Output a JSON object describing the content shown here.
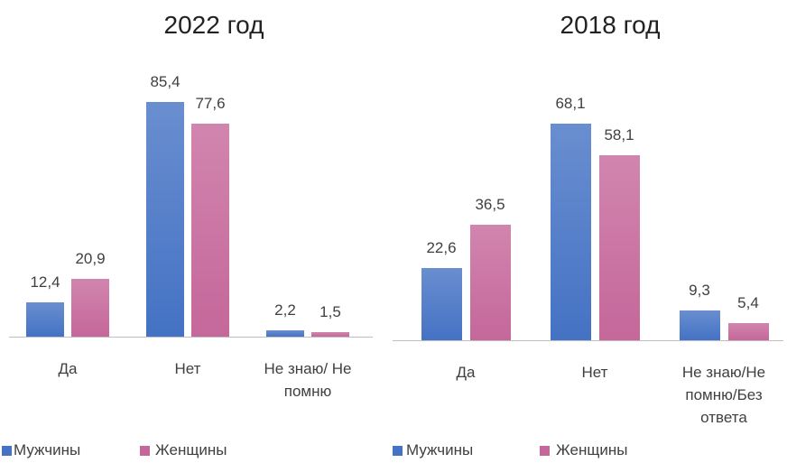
{
  "chart_data": [
    {
      "type": "bar",
      "title": "2022 год",
      "categories": [
        "Да",
        "Нет",
        "Не знаю/ Не помню"
      ],
      "series": [
        {
          "name": "Мужчины",
          "color": "#4472c4",
          "values": [
            12.4,
            85.4,
            2.2
          ],
          "value_labels": [
            "12,4",
            "85,4",
            "2,2"
          ]
        },
        {
          "name": "Женщины",
          "color": "#c5679a",
          "values": [
            20.9,
            77.6,
            1.5
          ],
          "value_labels": [
            "20,9",
            "77,6",
            "1,5"
          ]
        }
      ]
    },
    {
      "type": "bar",
      "title": "2018 год",
      "categories": [
        "Да",
        "Нет",
        "Не знаю/Не помню/Без ответа"
      ],
      "series": [
        {
          "name": "Мужчины",
          "color": "#4472c4",
          "values": [
            22.6,
            68.1,
            9.3
          ],
          "value_labels": [
            "22,6",
            "68,1",
            "9,3"
          ]
        },
        {
          "name": "Женщины",
          "color": "#c5679a",
          "values": [
            36.5,
            58.1,
            5.4
          ],
          "value_labels": [
            "36,5",
            "58,1",
            "5,4"
          ]
        }
      ]
    }
  ]
}
